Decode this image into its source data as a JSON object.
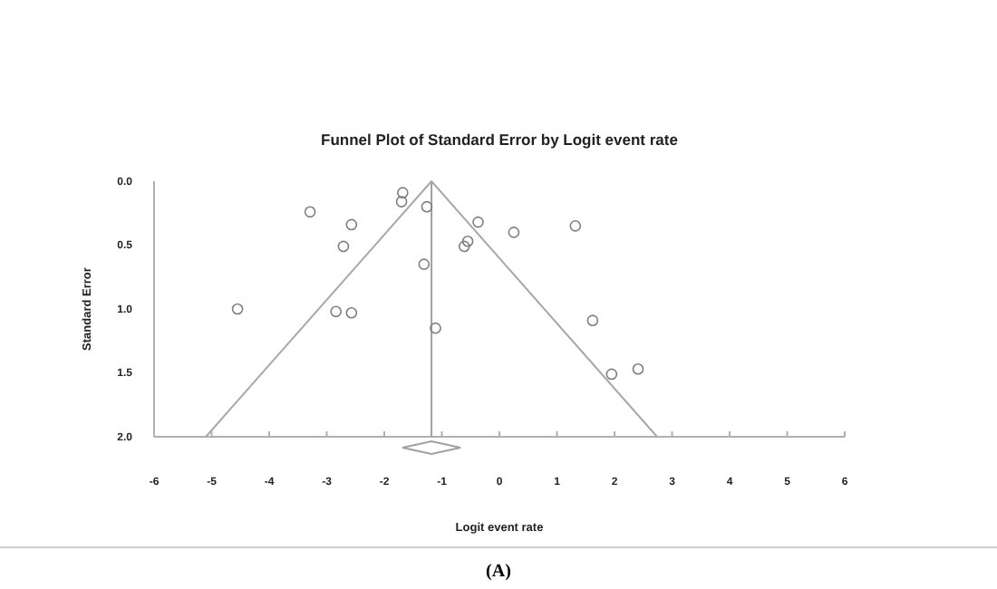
{
  "chart_data": {
    "type": "scatter",
    "title": "Funnel Plot of Standard Error by Logit event rate",
    "xlabel": "Logit event rate",
    "ylabel": "Standard Error",
    "annotations": [
      "(A)"
    ],
    "xlim": [
      -6,
      6
    ],
    "xticks": [
      -6,
      -5,
      -4,
      -3,
      -2,
      -1,
      0,
      1,
      2,
      3,
      4,
      5,
      6
    ],
    "ylim": [
      2.0,
      0.0
    ],
    "yticks": [
      {
        "value": 0,
        "label": "0.0"
      },
      {
        "value": 0.5,
        "label": "0.5"
      },
      {
        "value": 1,
        "label": "1.0"
      },
      {
        "value": 1.5,
        "label": "1.5"
      },
      {
        "value": 2,
        "label": "2.0"
      }
    ],
    "grid": false,
    "marker": "circle",
    "ref_lines": [
      {
        "axis": "x",
        "value": -1.18,
        "color": "#a0a0a0"
      }
    ],
    "series": [
      {
        "type": "line",
        "marker": "none",
        "color": "#a8a8a8",
        "x": [
          -5.1,
          -1.18,
          2.74
        ],
        "values": [
          2.0,
          0.0,
          2.0
        ]
      },
      {
        "color": "#7f7f7f",
        "x": [
          -1.68,
          -1.7,
          -3.29,
          -1.26,
          -2.57,
          -0.37,
          0.25,
          1.32,
          -2.71,
          -0.55,
          -0.61,
          -1.31,
          -4.55,
          -2.84,
          -2.57,
          -1.11,
          1.62,
          1.95,
          2.41
        ],
        "values": [
          0.09,
          0.16,
          0.24,
          0.2,
          0.34,
          0.32,
          0.4,
          0.35,
          0.51,
          0.47,
          0.51,
          0.65,
          1.0,
          1.02,
          1.03,
          1.15,
          1.09,
          1.51,
          1.47
        ]
      }
    ]
  }
}
